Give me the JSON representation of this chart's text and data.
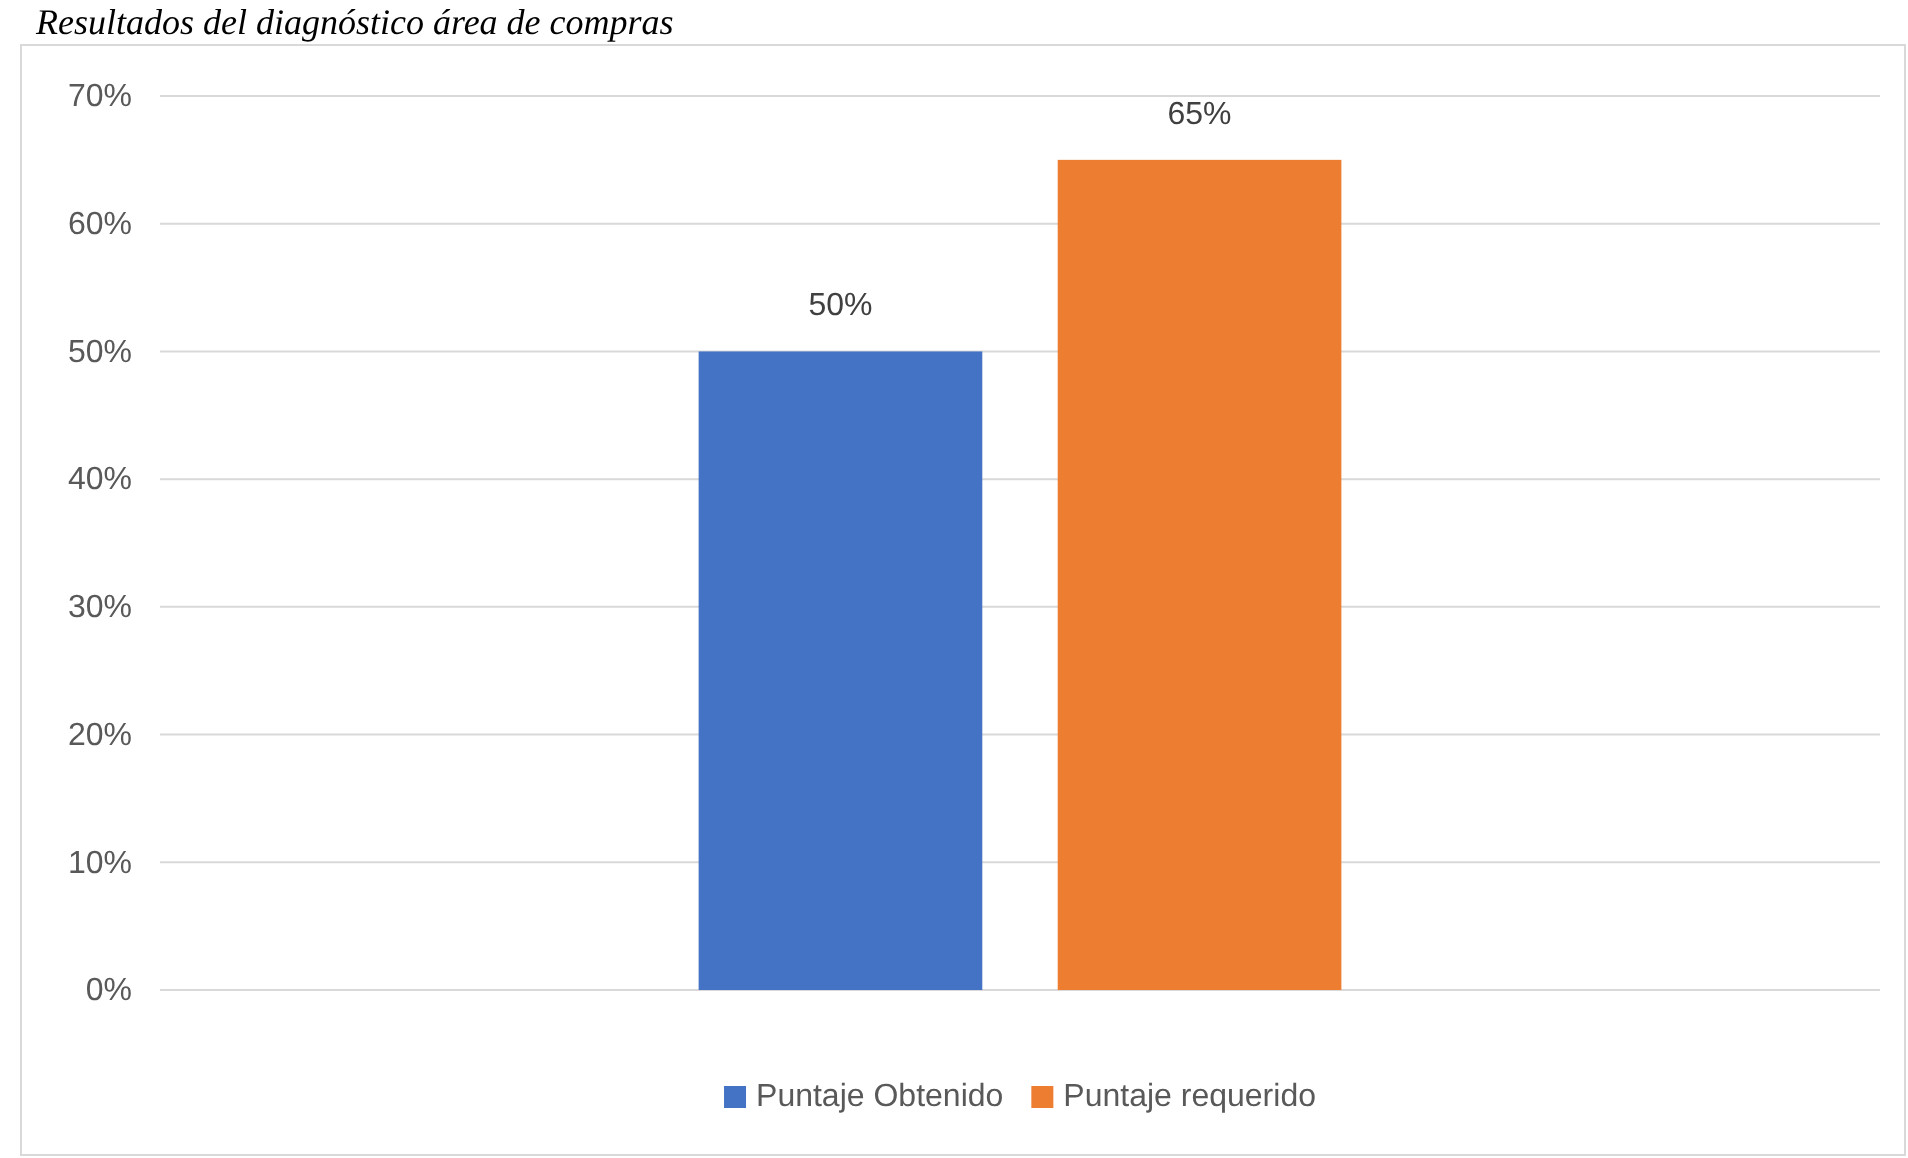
{
  "chart_data": {
    "type": "bar",
    "title": "Resultados del diagnóstico área de compras",
    "categories": [
      null
    ],
    "series": [
      {
        "name": "Puntaje Obtenido",
        "color": "#4472c4",
        "values": [
          50
        ],
        "value_labels": [
          "50%"
        ]
      },
      {
        "name": "Puntaje requerido",
        "color": "#ed7d31",
        "values": [
          65
        ],
        "value_labels": [
          "65%"
        ]
      }
    ],
    "ylim": [
      0,
      70
    ],
    "yticks": [
      {
        "value": 0,
        "label": "0%"
      },
      {
        "value": 10,
        "label": "10%"
      },
      {
        "value": 20,
        "label": "20%"
      },
      {
        "value": 30,
        "label": "30%"
      },
      {
        "value": 40,
        "label": "40%"
      },
      {
        "value": 50,
        "label": "50%"
      },
      {
        "value": 60,
        "label": "60%"
      },
      {
        "value": 70,
        "label": "70%"
      }
    ],
    "grid": "y",
    "legend": "bottom"
  }
}
